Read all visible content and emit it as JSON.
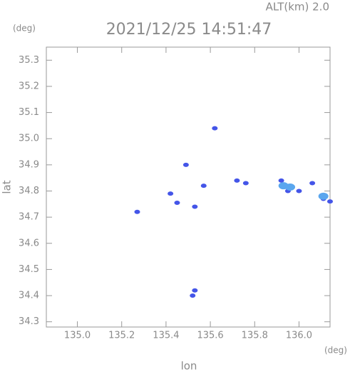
{
  "chart_data": {
    "type": "scatter",
    "title": "2021/12/25 14:51:47",
    "subtitle": "ALT(km) 2.0",
    "y_unit": "(deg)",
    "x_unit": "(deg)",
    "x_label": "lon",
    "y_label": "lat",
    "xlim": [
      134.86,
      136.14
    ],
    "ylim": [
      34.28,
      35.35
    ],
    "xticks": [
      {
        "value": 135.0,
        "label": "135.0"
      },
      135.2,
      135.4,
      135.6,
      135.8,
      {
        "value": 136.0,
        "label": "136.0"
      }
    ],
    "yticks": [
      35.3,
      35.2,
      35.1,
      {
        "value": 35.0,
        "label": "35.0"
      },
      34.9,
      34.8,
      34.7,
      34.6,
      34.5,
      34.4,
      34.3
    ],
    "series": [
      {
        "color": "#4455e8",
        "x": [
          135.62,
          135.49,
          135.57,
          135.42,
          135.45,
          135.53,
          135.27,
          135.53,
          135.52,
          135.72,
          135.76,
          135.92,
          135.95,
          136.0,
          136.06,
          136.11,
          136.14
        ],
        "y": [
          35.04,
          34.9,
          34.82,
          34.79,
          34.755,
          34.74,
          34.72,
          34.42,
          34.4,
          34.84,
          34.83,
          34.84,
          34.8,
          34.8,
          34.83,
          34.77,
          34.76
        ]
      },
      {
        "color": "#5aa6ee",
        "x": [
          135.93,
          135.96,
          136.11
        ],
        "y": [
          34.82,
          34.815,
          34.78
        ]
      }
    ]
  }
}
